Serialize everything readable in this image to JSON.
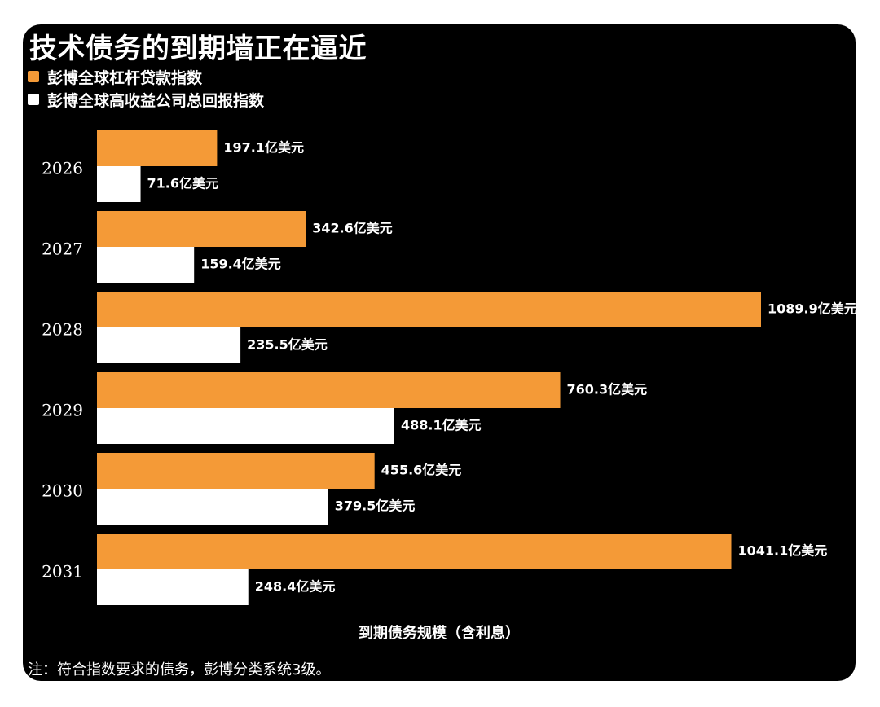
{
  "title": "技术债务的到期墙正在逼近",
  "note": "注：符合指数要求的债务，彭博分类系统3级。",
  "colors": {
    "loan": "#f49a37",
    "hy": "#ffffff",
    "background": "#000000"
  },
  "chart_data": {
    "type": "bar",
    "orientation": "horizontal",
    "title": "技术债务的到期墙正在逼近",
    "xlabel": "到期债务规模（含利息）",
    "ylabel": "",
    "categories": [
      "2026",
      "2027",
      "2028",
      "2029",
      "2030",
      "2031"
    ],
    "unit_suffix": "亿美元",
    "xlim": [
      0,
      1089.9
    ],
    "grid": false,
    "legend_position": "top-left",
    "series": [
      {
        "name": "彭博全球杠杆贷款指数",
        "color": "#f49a37",
        "values": [
          197.1,
          342.6,
          1089.9,
          760.3,
          455.6,
          1041.1
        ]
      },
      {
        "name": "彭博全球高收益公司总回报指数",
        "color": "#ffffff",
        "values": [
          71.6,
          159.4,
          235.5,
          488.1,
          379.5,
          248.4
        ]
      }
    ]
  }
}
